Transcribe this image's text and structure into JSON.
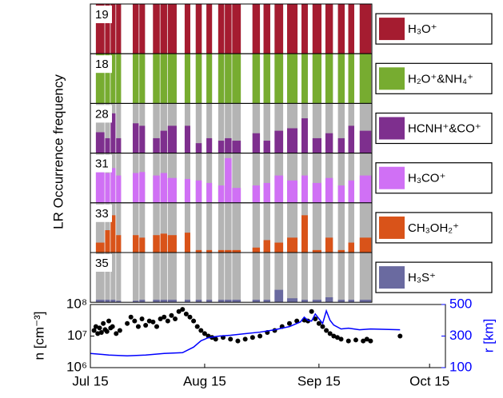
{
  "figure": {
    "ylabel": "LR Occurrence frequency"
  },
  "chart_data": [
    {
      "type": "bar",
      "count": 19,
      "xlim": [
        0,
        76.4
      ],
      "ylim": [
        0,
        1
      ],
      "background": "#b4b4b4",
      "x_start": [
        1.5,
        4,
        5.5,
        7,
        11.5,
        13.3,
        17,
        19,
        21,
        25.6,
        28.6,
        31.5,
        34.7,
        36.5,
        38.5,
        44,
        47,
        50,
        53.4,
        57.3,
        60.3,
        63.8,
        67.2,
        70,
        73.1
      ],
      "x_end": [
        4,
        5.5,
        7,
        8.5,
        13.3,
        15,
        19,
        21,
        23.6,
        27.3,
        30.4,
        33.2,
        36.5,
        38.5,
        41,
        46.2,
        49,
        52.5,
        56.4,
        59.2,
        62.9,
        66,
        69.2,
        71.8,
        76.4
      ],
      "series": [
        {
          "name": "H₃O⁺",
          "color": "#a51c30",
          "values": [
            1,
            1,
            1,
            1,
            1,
            1,
            1,
            1,
            1,
            1,
            1,
            1,
            1,
            1,
            1,
            1,
            1,
            1,
            1,
            1,
            1,
            1,
            1,
            1,
            1
          ]
        }
      ]
    },
    {
      "type": "bar",
      "count": 18,
      "xlim": [
        0,
        76.4
      ],
      "ylim": [
        0,
        1
      ],
      "background": "#b4b4b4",
      "series": [
        {
          "name": "H₂O⁺&NH₄⁺",
          "color": "#77ac30",
          "values": [
            1,
            1,
            1,
            1,
            1,
            1,
            1,
            1,
            1,
            1,
            1,
            1,
            1,
            1,
            1,
            1,
            1,
            1,
            1,
            1,
            1,
            1,
            1,
            1,
            1
          ]
        }
      ]
    },
    {
      "type": "bar",
      "count": 28,
      "xlim": [
        0,
        76.4
      ],
      "ylim": [
        0,
        1
      ],
      "background": "#b4b4b4",
      "series": [
        {
          "name": "HCNH⁺&CO⁺",
          "color": "#7e2f8e",
          "values": [
            0.42,
            0.3,
            0.8,
            0.3,
            0.6,
            0.55,
            0.3,
            0.45,
            0.55,
            0.55,
            0.2,
            0.3,
            0.25,
            0.3,
            0.25,
            0.4,
            0.25,
            0.45,
            0.5,
            0.7,
            0.3,
            0.4,
            0.3,
            0.55,
            0.45
          ]
        }
      ]
    },
    {
      "type": "bar",
      "count": 31,
      "xlim": [
        0,
        76.4
      ],
      "ylim": [
        0,
        1
      ],
      "background": "#b4b4b4",
      "series": [
        {
          "name": "H₃CO⁺",
          "color": "#d070f5",
          "values": [
            0.95,
            0.6,
            0.7,
            0.55,
            0.6,
            0.62,
            0.55,
            0.6,
            0.5,
            0.48,
            0.45,
            0.4,
            0.35,
            0.9,
            0.3,
            0.35,
            0.4,
            0.55,
            0.45,
            0.55,
            0.4,
            0.5,
            0.35,
            0.45,
            0.55
          ]
        }
      ]
    },
    {
      "type": "bar",
      "count": 33,
      "xlim": [
        0,
        76.4
      ],
      "ylim": [
        0,
        1
      ],
      "background": "#b4b4b4",
      "series": [
        {
          "name": "CH₃OH₂⁺",
          "color": "#d95319",
          "values": [
            0.2,
            0.45,
            0.75,
            0.35,
            0.35,
            0.3,
            0.35,
            0.38,
            0.35,
            0.4,
            0.05,
            0.05,
            0.05,
            0.05,
            0.05,
            0.1,
            0.25,
            0.2,
            0.3,
            0.75,
            0.05,
            0.3,
            0.05,
            0.2,
            0.3
          ]
        }
      ]
    },
    {
      "type": "bar",
      "count": 35,
      "xlim": [
        0,
        76.4
      ],
      "ylim": [
        0,
        1
      ],
      "background": "#b4b4b4",
      "series": [
        {
          "name": "H₃S⁺",
          "color": "#6a6aa0",
          "values": [
            0.05,
            0.05,
            0.05,
            0.03,
            0.03,
            0.05,
            0.05,
            0.05,
            0.05,
            0.05,
            0.05,
            0.05,
            0.05,
            0.05,
            0.05,
            0.05,
            0.05,
            0.25,
            0.08,
            0.05,
            0.05,
            0.1,
            0.05,
            0.05,
            0.05
          ]
        }
      ]
    },
    {
      "type": "scatter",
      "xlim": [
        0,
        96.3
      ],
      "xticks": [
        {
          "value": 0,
          "label": "Jul 15"
        },
        {
          "value": 31,
          "label": "Aug 15"
        },
        {
          "value": 62,
          "label": "Sep 15"
        },
        {
          "value": 92,
          "label": "Oct 15"
        }
      ],
      "ylim": [
        1000000.0,
        100000000.0
      ],
      "log_y": true,
      "yticks": [
        {
          "value": 1000000.0,
          "label": "10⁶"
        },
        {
          "value": 10000000.0,
          "label": "10⁷"
        },
        {
          "value": 100000000.0,
          "label": "10⁸"
        }
      ],
      "ylabel": "n [cm⁻³]",
      "y2lim": [
        100,
        500
      ],
      "y2ticks": [
        100,
        300,
        500
      ],
      "y2label": "r [km]",
      "y2color": "#0000ff",
      "series": [
        {
          "name": "n",
          "color": "#000000",
          "x": [
            1,
            1.5,
            2,
            2.5,
            3,
            3.5,
            4,
            4.5,
            5,
            5.5,
            6,
            7,
            8,
            10,
            11,
            12,
            13,
            14,
            15,
            16,
            17,
            18,
            19,
            20,
            21,
            22,
            23,
            24,
            25,
            26,
            27,
            28,
            29,
            30,
            31,
            32,
            33,
            34,
            36,
            38,
            40,
            42,
            44,
            46,
            48,
            50,
            52,
            54,
            56,
            58,
            59,
            60,
            61,
            62,
            63,
            64,
            65,
            66,
            67,
            68,
            70,
            72,
            74,
            75,
            76,
            84
          ],
          "values": [
            15000000.0,
            20000000.0,
            12000000.0,
            18000000.0,
            13000000.0,
            25000000.0,
            16000000.0,
            14000000.0,
            30000000.0,
            18000000.0,
            20000000.0,
            12000000.0,
            15000000.0,
            25000000.0,
            40000000.0,
            30000000.0,
            20000000.0,
            35000000.0,
            22000000.0,
            30000000.0,
            28000000.0,
            20000000.0,
            35000000.0,
            40000000.0,
            30000000.0,
            45000000.0,
            35000000.0,
            60000000.0,
            70000000.0,
            50000000.0,
            40000000.0,
            30000000.0,
            20000000.0,
            15000000.0,
            12000000.0,
            10000000.0,
            9000000.0,
            8000000.0,
            9000000.0,
            8000000.0,
            7000000.0,
            8000000.0,
            9000000.0,
            10000000.0,
            13000000.0,
            15000000.0,
            20000000.0,
            25000000.0,
            30000000.0,
            32000000.0,
            30000000.0,
            60000000.0,
            35000000.0,
            25000000.0,
            20000000.0,
            15000000.0,
            12000000.0,
            10000000.0,
            9000000.0,
            8000000.0,
            7000000.0,
            7500000.0,
            7000000.0,
            8000000.0,
            7000000.0,
            10000000.0
          ]
        },
        {
          "name": "r",
          "color": "#0000ff",
          "axis": "y2",
          "x": [
            0,
            5,
            10,
            15,
            20,
            25,
            28,
            30,
            32,
            35,
            38,
            42,
            46,
            50,
            54,
            57,
            58,
            59,
            60,
            61,
            62,
            63,
            64,
            65,
            66,
            68,
            70,
            73,
            76,
            84
          ],
          "values": [
            190,
            180,
            175,
            180,
            190,
            195,
            230,
            270,
            290,
            300,
            305,
            315,
            325,
            340,
            360,
            390,
            420,
            400,
            395,
            440,
            410,
            380,
            460,
            400,
            370,
            345,
            350,
            340,
            345,
            340
          ]
        }
      ]
    }
  ]
}
